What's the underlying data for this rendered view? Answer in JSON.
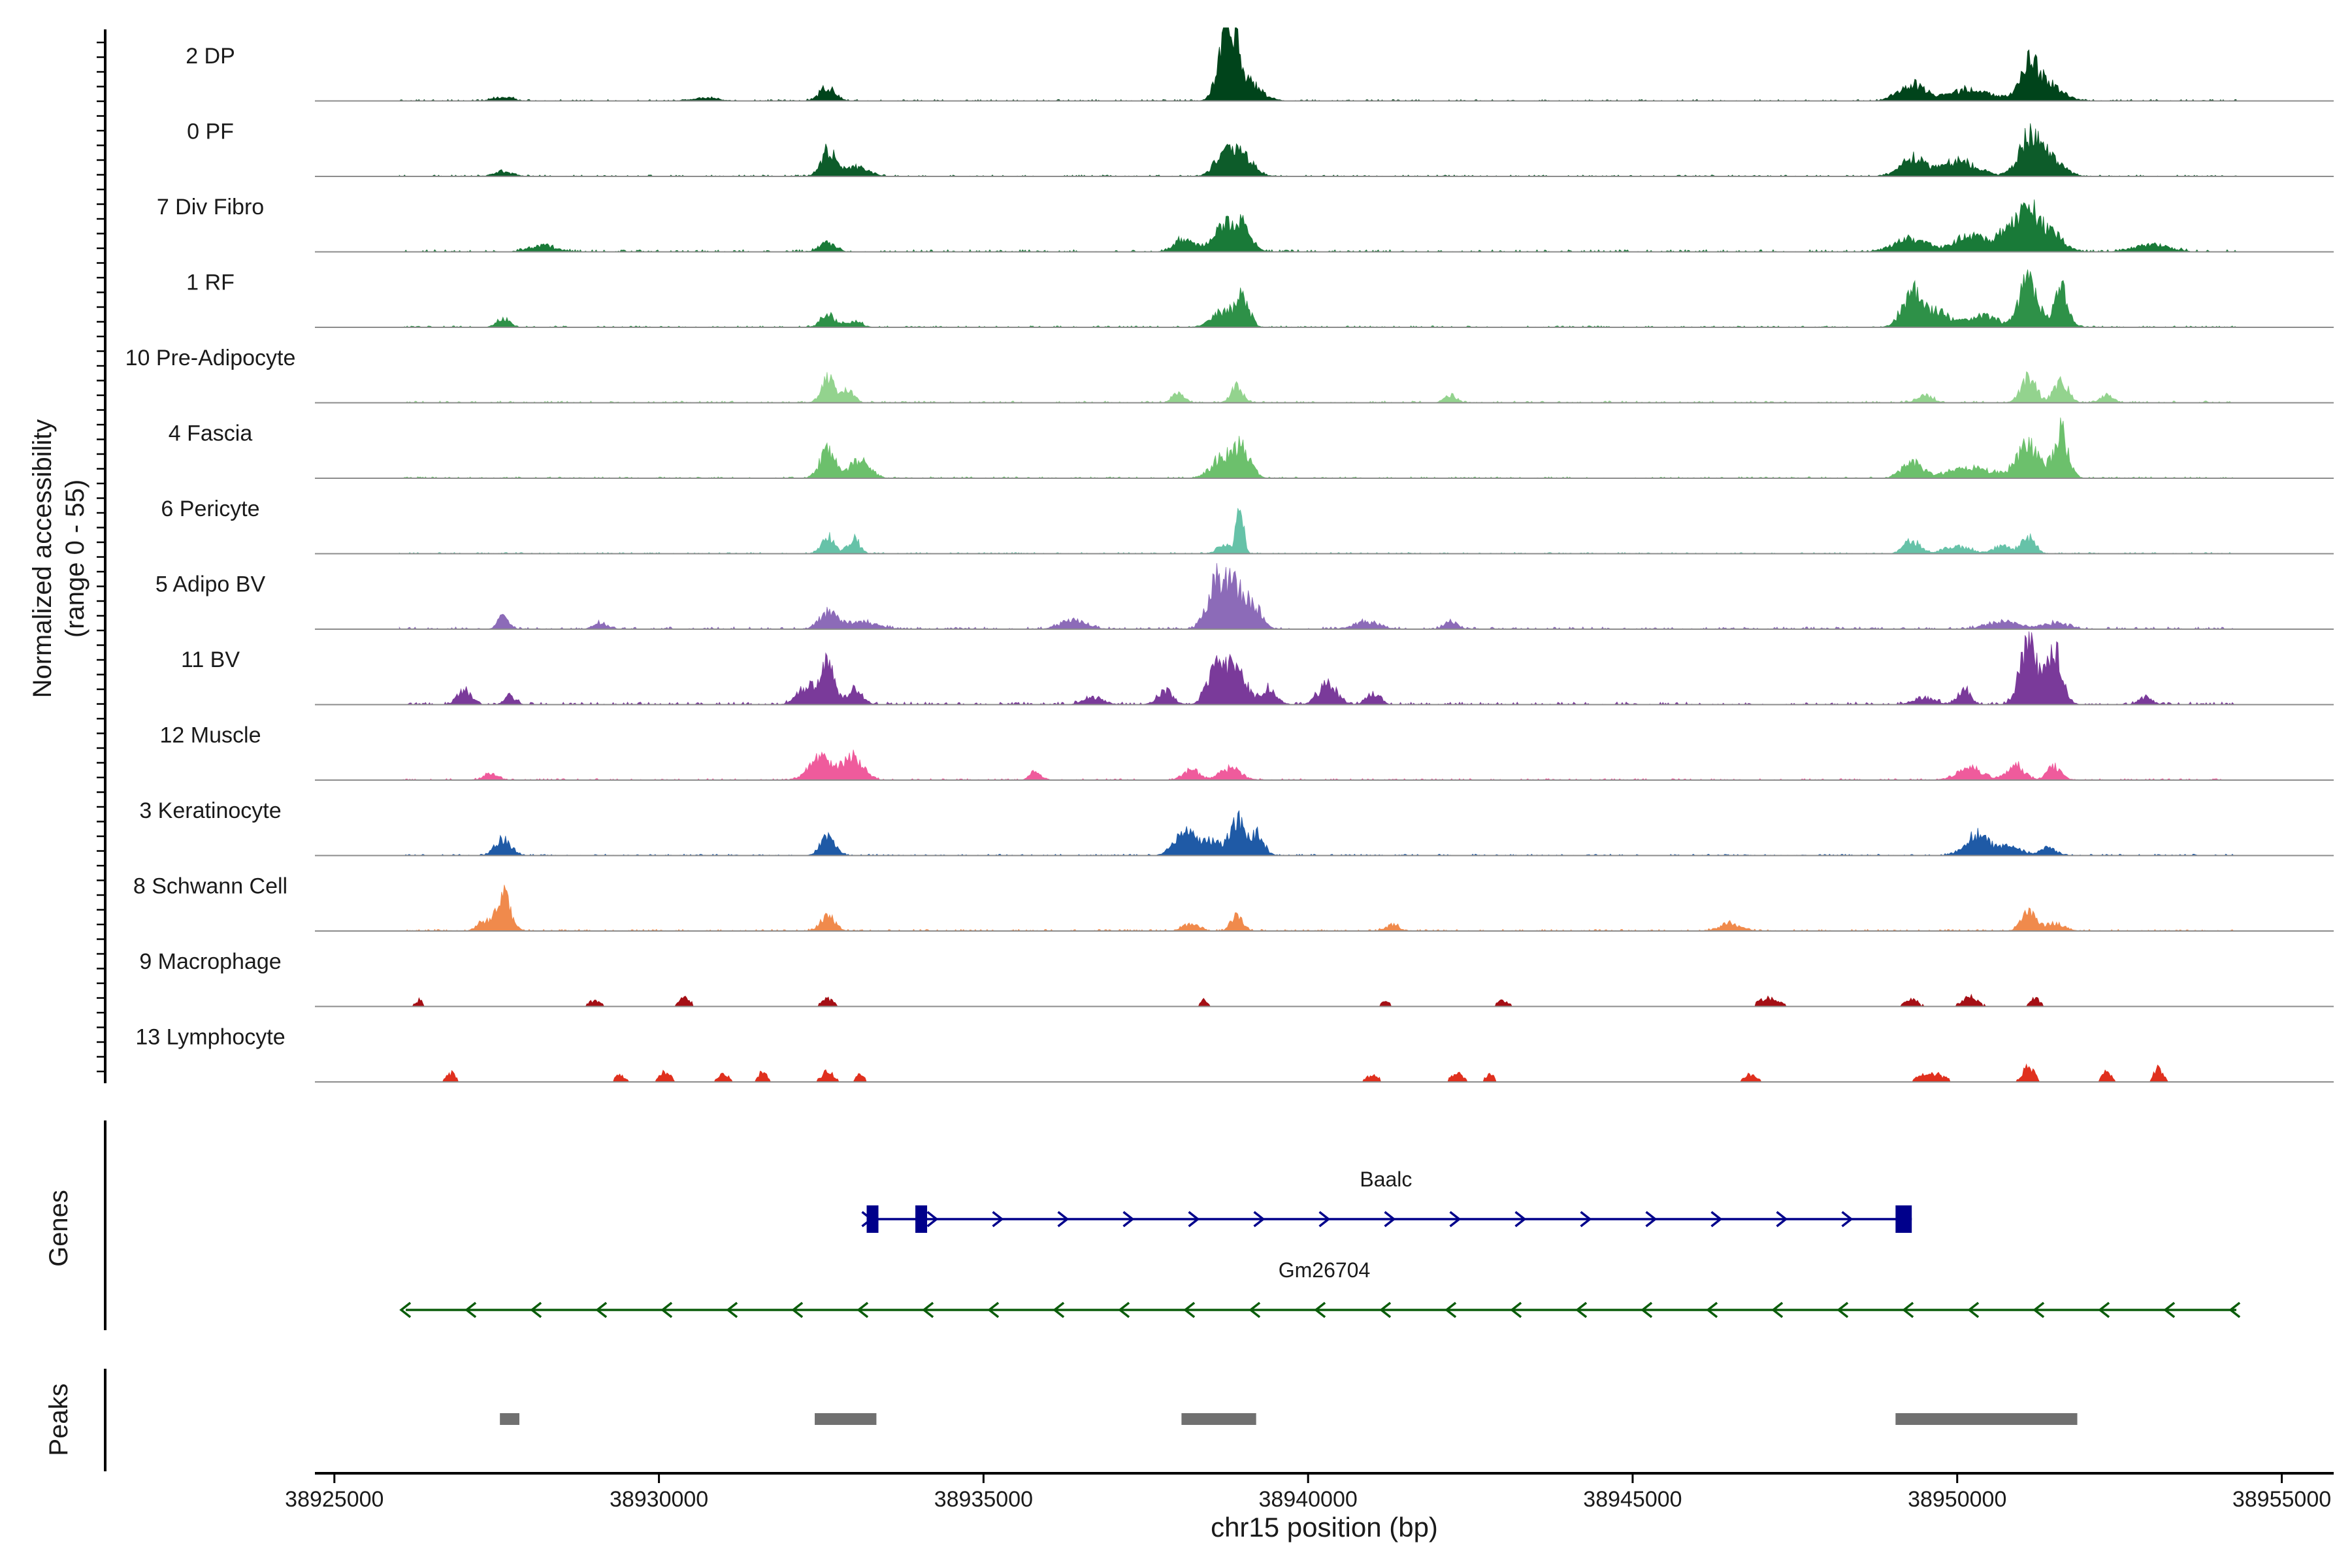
{
  "chart_data": {
    "type": "area",
    "title": "",
    "ylabel_line1": "Normalized accessibility",
    "ylabel_line2": "(range 0 - 55)",
    "xlabel": "chr15 position (bp)",
    "xlim": [
      38924700,
      38955800
    ],
    "ylim": [
      0,
      55
    ],
    "xticks": [
      38925000,
      38930000,
      38935000,
      38940000,
      38945000,
      38950000,
      38955000
    ],
    "xtick_labels": [
      "38925000",
      "38930000",
      "38935000",
      "38940000",
      "38945000",
      "38950000",
      "38955000"
    ],
    "track_range": [
      38926000,
      38954300
    ],
    "series": [
      {
        "name": "2 DP",
        "color": "#00441b",
        "noise": 0.02,
        "peaks": [
          [
            38927600,
            150,
            0.05
          ],
          [
            38930700,
            200,
            0.04
          ],
          [
            38932600,
            120,
            0.18
          ],
          [
            38938700,
            110,
            0.62
          ],
          [
            38938850,
            90,
            0.48
          ],
          [
            38939000,
            220,
            0.3
          ],
          [
            38949300,
            200,
            0.22
          ],
          [
            38950200,
            350,
            0.15
          ],
          [
            38951100,
            130,
            0.38
          ],
          [
            38951350,
            230,
            0.25
          ]
        ]
      },
      {
        "name": "0 PF",
        "color": "#0d5c2a",
        "noise": 0.02,
        "peaks": [
          [
            38927600,
            150,
            0.06
          ],
          [
            38932600,
            110,
            0.32
          ],
          [
            38933000,
            200,
            0.14
          ],
          [
            38938700,
            140,
            0.3
          ],
          [
            38939000,
            160,
            0.28
          ],
          [
            38949300,
            180,
            0.24
          ],
          [
            38950000,
            300,
            0.2
          ],
          [
            38951100,
            160,
            0.45
          ],
          [
            38951400,
            200,
            0.28
          ]
        ]
      },
      {
        "name": "7 Div Fibro",
        "color": "#197a38",
        "noise": 0.03,
        "peaks": [
          [
            38928200,
            200,
            0.08
          ],
          [
            38932600,
            120,
            0.12
          ],
          [
            38938100,
            150,
            0.18
          ],
          [
            38938700,
            180,
            0.34
          ],
          [
            38939000,
            130,
            0.3
          ],
          [
            38949300,
            250,
            0.18
          ],
          [
            38950200,
            220,
            0.22
          ],
          [
            38950800,
            180,
            0.32
          ],
          [
            38951100,
            120,
            0.48
          ],
          [
            38951400,
            200,
            0.3
          ],
          [
            38953000,
            250,
            0.1
          ]
        ]
      },
      {
        "name": "1 RF",
        "color": "#2e9148",
        "noise": 0.02,
        "peaks": [
          [
            38927600,
            100,
            0.12
          ],
          [
            38932600,
            110,
            0.16
          ],
          [
            38933000,
            120,
            0.08
          ],
          [
            38938700,
            180,
            0.22
          ],
          [
            38939000,
            100,
            0.36
          ],
          [
            38949300,
            150,
            0.45
          ],
          [
            38949700,
            200,
            0.2
          ],
          [
            38950400,
            220,
            0.15
          ],
          [
            38951100,
            140,
            0.62
          ],
          [
            38951600,
            110,
            0.5
          ]
        ]
      },
      {
        "name": "10 Pre-Adipocyte",
        "color": "#93d38e",
        "noise": 0.025,
        "peaks": [
          [
            38932600,
            100,
            0.32
          ],
          [
            38932900,
            100,
            0.18
          ],
          [
            38938000,
            90,
            0.12
          ],
          [
            38938900,
            90,
            0.22
          ],
          [
            38942200,
            90,
            0.1
          ],
          [
            38949500,
            120,
            0.1
          ],
          [
            38951100,
            110,
            0.35
          ],
          [
            38951600,
            110,
            0.3
          ],
          [
            38952300,
            90,
            0.1
          ]
        ]
      },
      {
        "name": "4 Fascia",
        "color": "#6cc06c",
        "noise": 0.02,
        "peaks": [
          [
            38932600,
            120,
            0.36
          ],
          [
            38933100,
            150,
            0.24
          ],
          [
            38938700,
            180,
            0.28
          ],
          [
            38939000,
            120,
            0.36
          ],
          [
            38949300,
            150,
            0.22
          ],
          [
            38950200,
            350,
            0.14
          ],
          [
            38951100,
            170,
            0.44
          ],
          [
            38951600,
            110,
            0.62
          ]
        ]
      },
      {
        "name": "6 Pericyte",
        "color": "#66c2a8",
        "noise": 0.018,
        "peaks": [
          [
            38932600,
            100,
            0.22
          ],
          [
            38933000,
            90,
            0.2
          ],
          [
            38938700,
            100,
            0.12
          ],
          [
            38938950,
            55,
            0.62
          ],
          [
            38949300,
            120,
            0.18
          ],
          [
            38950000,
            200,
            0.1
          ],
          [
            38950700,
            140,
            0.1
          ],
          [
            38951100,
            100,
            0.22
          ]
        ]
      },
      {
        "name": "5 Adipo BV",
        "color": "#8c6bb8",
        "noise": 0.03,
        "peaks": [
          [
            38927600,
            80,
            0.18
          ],
          [
            38929100,
            110,
            0.08
          ],
          [
            38932600,
            130,
            0.22
          ],
          [
            38933100,
            250,
            0.1
          ],
          [
            38936400,
            200,
            0.12
          ],
          [
            38938600,
            150,
            0.58
          ],
          [
            38938900,
            170,
            0.5
          ],
          [
            38939200,
            110,
            0.2
          ],
          [
            38940900,
            200,
            0.1
          ],
          [
            38942200,
            100,
            0.1
          ],
          [
            38950700,
            250,
            0.1
          ],
          [
            38951500,
            200,
            0.08
          ]
        ]
      },
      {
        "name": "11 BV",
        "color": "#7a3a9a",
        "noise": 0.035,
        "peaks": [
          [
            38927000,
            100,
            0.2
          ],
          [
            38927700,
            80,
            0.12
          ],
          [
            38932600,
            100,
            0.52
          ],
          [
            38932300,
            150,
            0.25
          ],
          [
            38933000,
            120,
            0.2
          ],
          [
            38936700,
            150,
            0.1
          ],
          [
            38937800,
            120,
            0.18
          ],
          [
            38938600,
            140,
            0.5
          ],
          [
            38938900,
            160,
            0.42
          ],
          [
            38939400,
            120,
            0.2
          ],
          [
            38940300,
            140,
            0.28
          ],
          [
            38941000,
            100,
            0.16
          ],
          [
            38949500,
            150,
            0.1
          ],
          [
            38950100,
            100,
            0.2
          ],
          [
            38951100,
            130,
            0.82
          ],
          [
            38951500,
            120,
            0.75
          ],
          [
            38952900,
            100,
            0.1
          ]
        ]
      },
      {
        "name": "12 Muscle",
        "color": "#ef5b9c",
        "noise": 0.02,
        "peaks": [
          [
            38927400,
            100,
            0.1
          ],
          [
            38932500,
            180,
            0.3
          ],
          [
            38933000,
            150,
            0.3
          ],
          [
            38935800,
            80,
            0.12
          ],
          [
            38938200,
            120,
            0.14
          ],
          [
            38938800,
            160,
            0.16
          ],
          [
            38950200,
            200,
            0.15
          ],
          [
            38950900,
            130,
            0.2
          ],
          [
            38951500,
            110,
            0.18
          ]
        ]
      },
      {
        "name": "3 Keratinocyte",
        "color": "#1f5aa6",
        "noise": 0.02,
        "peaks": [
          [
            38927600,
            120,
            0.22
          ],
          [
            38932600,
            110,
            0.26
          ],
          [
            38938100,
            160,
            0.3
          ],
          [
            38938500,
            180,
            0.18
          ],
          [
            38938900,
            100,
            0.5
          ],
          [
            38939200,
            110,
            0.28
          ],
          [
            38950300,
            180,
            0.28
          ],
          [
            38950800,
            180,
            0.12
          ],
          [
            38951400,
            120,
            0.1
          ]
        ]
      },
      {
        "name": "8 Schwann Cell",
        "color": "#f08a4c",
        "noise": 0.022,
        "peaks": [
          [
            38927600,
            110,
            0.48
          ],
          [
            38927300,
            100,
            0.12
          ],
          [
            38932600,
            110,
            0.2
          ],
          [
            38938200,
            120,
            0.1
          ],
          [
            38938900,
            90,
            0.2
          ],
          [
            38941300,
            100,
            0.08
          ],
          [
            38946500,
            160,
            0.1
          ],
          [
            38951100,
            110,
            0.24
          ],
          [
            38951500,
            150,
            0.1
          ]
        ]
      },
      {
        "name": "9 Macrophage",
        "color": "#a50f15",
        "noise": 0.015,
        "peaks": [
          [
            38926300,
            60,
            0.08
          ],
          [
            38929000,
            100,
            0.07
          ],
          [
            38930400,
            80,
            0.12
          ],
          [
            38932600,
            90,
            0.1
          ],
          [
            38938400,
            50,
            0.08
          ],
          [
            38941200,
            60,
            0.07
          ],
          [
            38943000,
            80,
            0.08
          ],
          [
            38947100,
            150,
            0.1
          ],
          [
            38949300,
            100,
            0.1
          ],
          [
            38950200,
            120,
            0.12
          ],
          [
            38951200,
            80,
            0.1
          ]
        ]
      },
      {
        "name": "13 Lymphocyte",
        "color": "#e0301e",
        "noise": 0.0,
        "peaks": [
          [
            38926800,
            70,
            0.12
          ],
          [
            38929400,
            70,
            0.1
          ],
          [
            38930100,
            80,
            0.14
          ],
          [
            38931000,
            80,
            0.1
          ],
          [
            38931600,
            60,
            0.16
          ],
          [
            38932600,
            90,
            0.14
          ],
          [
            38933100,
            60,
            0.1
          ],
          [
            38941000,
            90,
            0.1
          ],
          [
            38942300,
            90,
            0.12
          ],
          [
            38942800,
            60,
            0.12
          ],
          [
            38946800,
            100,
            0.1
          ],
          [
            38949600,
            180,
            0.12
          ],
          [
            38951100,
            90,
            0.2
          ],
          [
            38952300,
            70,
            0.15
          ],
          [
            38953100,
            70,
            0.18
          ]
        ]
      }
    ]
  },
  "genes_panel": {
    "ylabel": "Genes",
    "genes": [
      {
        "name": "Baalc",
        "start": 38933200,
        "end": 38949300,
        "strand": "+",
        "color": "#00008b",
        "exons": [
          [
            38933200,
            38933350
          ],
          [
            38933950,
            38934100
          ],
          [
            38949050,
            38949300
          ]
        ]
      },
      {
        "name": "Gm26704",
        "start": 38926100,
        "end": 38954300,
        "strand": "-",
        "color": "#0a5c0a",
        "exons": []
      }
    ]
  },
  "peaks_panel": {
    "ylabel": "Peaks",
    "color": "#707070",
    "regions": [
      [
        38927550,
        38927850
      ],
      [
        38932400,
        38933350
      ],
      [
        38938050,
        38939200
      ],
      [
        38949050,
        38951850
      ]
    ]
  }
}
